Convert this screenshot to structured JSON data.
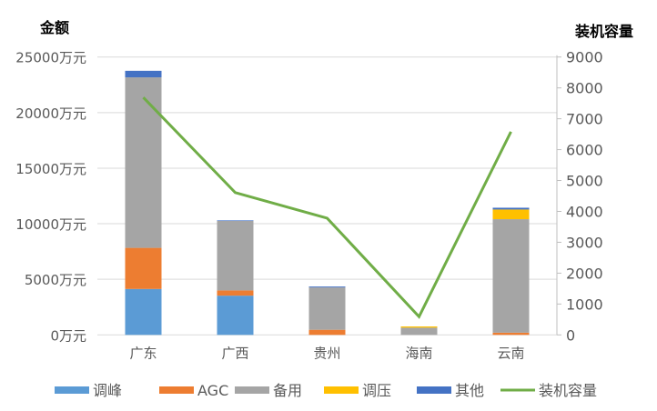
{
  "chart_data": {
    "type": "bar",
    "subtype": "stacked bar + line (secondary axis)",
    "y_title": "金额",
    "y2_title": "装机容量",
    "categories": [
      "广东",
      "广西",
      "贵州",
      "海南",
      "云南"
    ],
    "ylim": [
      0,
      25000
    ],
    "y_ticks": [
      "0万元",
      "5000万元",
      "10000万元",
      "15000万元",
      "20000万元",
      "25000万元"
    ],
    "y2lim": [
      0,
      9000
    ],
    "y2_ticks": [
      "0",
      "1000",
      "2000",
      "3000",
      "4000",
      "5000",
      "6000",
      "7000",
      "8000",
      "9000"
    ],
    "grid": true,
    "legend_position": "bottom",
    "series": [
      {
        "name": "调峰",
        "type": "bar",
        "color": "#5B9BD5",
        "values": [
          4130,
          3530,
          0,
          0,
          0
        ]
      },
      {
        "name": "AGC",
        "type": "bar",
        "color": "#ED7D31",
        "values": [
          3700,
          470,
          460,
          0,
          200
        ]
      },
      {
        "name": "备用",
        "type": "bar",
        "color": "#A5A5A5",
        "values": [
          15340,
          6250,
          3810,
          650,
          10210
        ]
      },
      {
        "name": "调压",
        "type": "bar",
        "color": "#FFC000",
        "values": [
          0,
          0,
          0,
          110,
          870
        ]
      },
      {
        "name": "其他",
        "type": "bar",
        "color": "#4472C4",
        "values": [
          590,
          50,
          80,
          0,
          160
        ]
      },
      {
        "name": "装机容量",
        "type": "line",
        "axis": "right",
        "color": "#70AD47",
        "values": [
          7690,
          4610,
          3780,
          590,
          6580
        ]
      }
    ]
  }
}
